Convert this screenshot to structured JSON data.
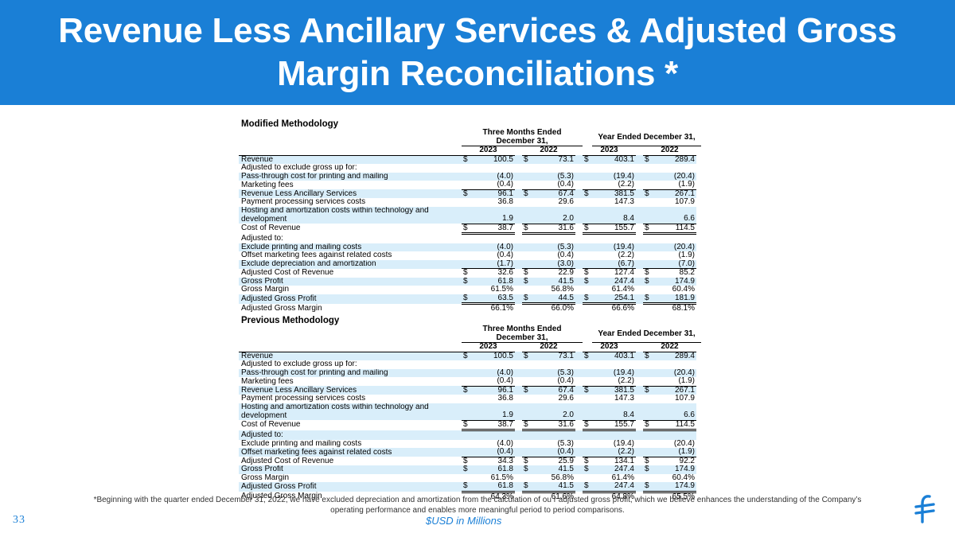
{
  "header": {
    "title": "Revenue Less Ancillary Services & Adjusted Gross Margin Reconciliations *"
  },
  "tables": [
    {
      "title": "Modified Methodology",
      "group_headers": [
        "Three Months Ended December 31,",
        "Year Ended December 31,"
      ],
      "years": [
        "2023",
        "2022",
        "2023",
        "2022"
      ],
      "rows": [
        {
          "label": "Revenue",
          "dollar": true,
          "values": [
            "100.5",
            "73.1",
            "403.1",
            "289.4"
          ],
          "shade": true
        },
        {
          "label": "Adjusted to exclude gross up for:",
          "values": []
        },
        {
          "label": "Pass-through cost for printing and mailing",
          "values": [
            "(4.0)",
            "(5.3)",
            "(19.4)",
            "(20.4)"
          ],
          "shade": true
        },
        {
          "label": "Marketing fees",
          "values": [
            "(0.4)",
            "(0.4)",
            "(2.2)",
            "(1.9)"
          ],
          "ul": true
        },
        {
          "label": "Revenue Less Ancillary Services",
          "dollar": true,
          "values": [
            "96.1",
            "67.4",
            "381.5",
            "267.1"
          ],
          "shade": true
        },
        {
          "label": "Payment processing services costs",
          "values": [
            "36.8",
            "29.6",
            "147.3",
            "107.9"
          ]
        },
        {
          "label": "Hosting and amortization costs within technology and",
          "values": [],
          "shade": true
        },
        {
          "label": "development",
          "values": [
            "1.9",
            "2.0",
            "8.4",
            "6.6"
          ],
          "ul": true,
          "shade": true
        },
        {
          "label": "Cost of Revenue",
          "dollar": true,
          "values": [
            "38.7",
            "31.6",
            "155.7",
            "114.5"
          ],
          "dul": true
        },
        {
          "label": "Adjusted to:",
          "values": []
        },
        {
          "label": "Exclude printing and mailing costs",
          "values": [
            "(4.0)",
            "(5.3)",
            "(19.4)",
            "(20.4)"
          ],
          "shade": true
        },
        {
          "label": "Offset marketing fees against related costs",
          "values": [
            "(0.4)",
            "(0.4)",
            "(2.2)",
            "(1.9)"
          ]
        },
        {
          "label": "Exclude depreciation and amortization",
          "values": [
            "(1.7)",
            "(3.0)",
            "(6.7)",
            "(7.0)"
          ],
          "ul": true,
          "shade": true
        },
        {
          "label": "Adjusted Cost of Revenue",
          "dollar": true,
          "values": [
            "32.6",
            "22.9",
            "127.4",
            "85.2"
          ]
        },
        {
          "label": "Gross Profit",
          "dollar": true,
          "values": [
            "61.8",
            "41.5",
            "247.4",
            "174.9"
          ],
          "shade": true
        },
        {
          "label": "Gross Margin",
          "values": [
            "61.5%",
            "56.8%",
            "61.4%",
            "60.4%"
          ]
        },
        {
          "label": "Adjusted Gross Profit",
          "dollar": true,
          "values": [
            "63.5",
            "44.5",
            "254.1",
            "181.9"
          ],
          "dul": true,
          "shade": true
        },
        {
          "label": "Adjusted Gross Margin",
          "values": [
            "66.1%",
            "66.0%",
            "66.6%",
            "68.1%"
          ]
        }
      ]
    },
    {
      "title": "Previous Methodology",
      "group_headers": [
        "Three Months Ended December 31,",
        "Year Ended December 31,"
      ],
      "years": [
        "2023",
        "2022",
        "2023",
        "2022"
      ],
      "rows": [
        {
          "label": "Revenue",
          "dollar": true,
          "values": [
            "100.5",
            "73.1",
            "403.1",
            "289.4"
          ],
          "shade": true
        },
        {
          "label": "Adjusted to exclude gross up for:",
          "values": []
        },
        {
          "label": "Pass-through cost for printing and mailing",
          "values": [
            "(4.0)",
            "(5.3)",
            "(19.4)",
            "(20.4)"
          ],
          "shade": true
        },
        {
          "label": "Marketing fees",
          "values": [
            "(0.4)",
            "(0.4)",
            "(2.2)",
            "(1.9)"
          ],
          "ul": true
        },
        {
          "label": "Revenue Less Ancillary Services",
          "dollar": true,
          "values": [
            "96.1",
            "67.4",
            "381.5",
            "267.1"
          ],
          "shade": true
        },
        {
          "label": "Payment processing services costs",
          "values": [
            "36.8",
            "29.6",
            "147.3",
            "107.9"
          ]
        },
        {
          "label": "Hosting and amortization costs within technology and",
          "values": [],
          "shade": true
        },
        {
          "label": "development",
          "values": [
            "1.9",
            "2.0",
            "8.4",
            "6.6"
          ],
          "ul": true,
          "shade": true
        },
        {
          "label": "Cost of Revenue",
          "dollar": true,
          "values": [
            "38.7",
            "31.6",
            "155.7",
            "114.5"
          ],
          "dul": true
        },
        {
          "label": "Adjusted to:",
          "values": [],
          "shade": true
        },
        {
          "label": "Exclude printing and mailing costs",
          "values": [
            "(4.0)",
            "(5.3)",
            "(19.4)",
            "(20.4)"
          ]
        },
        {
          "label": "Offset marketing fees against related costs",
          "values": [
            "(0.4)",
            "(0.4)",
            "(2.2)",
            "(1.9)"
          ],
          "ul": true,
          "shade": true
        },
        {
          "label": "Adjusted Cost of Revenue",
          "dollar": true,
          "values": [
            "34.3",
            "25.9",
            "134.1",
            "92.2"
          ]
        },
        {
          "label": "Gross Profit",
          "dollar": true,
          "values": [
            "61.8",
            "41.5",
            "247.4",
            "174.9"
          ],
          "shade": true
        },
        {
          "label": "Gross Margin",
          "values": [
            "61.5%",
            "56.8%",
            "61.4%",
            "60.4%"
          ]
        },
        {
          "label": "Adjusted Gross Profit",
          "dollar": true,
          "values": [
            "61.8",
            "41.5",
            "247.4",
            "174.9"
          ],
          "dul": true,
          "shade": true
        },
        {
          "label": "Adjusted Gross Margin",
          "values": [
            "64.3%",
            "61.6%",
            "64.8%",
            "65.5%"
          ]
        }
      ]
    }
  ],
  "footnote": "*Beginning with the quarter ended December 31, 2022, we have excluded depreciation and amortization from the calculation of ou r adjusted gross profit, which we believe enhances the understanding of the Company’s operating performance and enables more meaningful period to period comparisons.",
  "units": "$USD in Millions",
  "page_number": "33",
  "currency_symbol": "$",
  "colors": {
    "brand": "#1a7fd6",
    "row_shade": "#d9eefa"
  }
}
